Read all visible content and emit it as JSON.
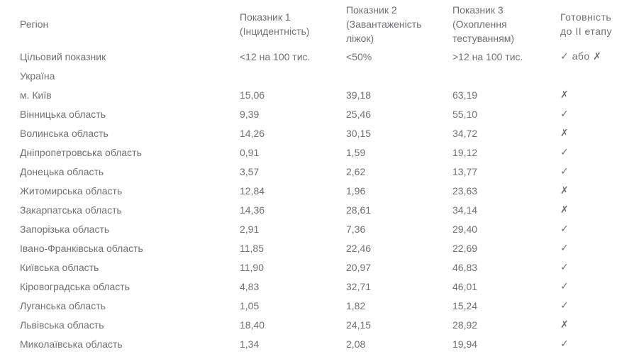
{
  "table": {
    "columns": [
      {
        "label": "Регіон"
      },
      {
        "label": "Показник 1\n(Інцидентність)"
      },
      {
        "label": "Показник 2\n(Завантаженість\nліжок)"
      },
      {
        "label": "Показник 3\n(Охоплення\nтестуванням)"
      },
      {
        "label": "Готовність\nдо II етапу"
      }
    ],
    "rows": [
      {
        "region": "Цільовий показник",
        "p1": "<12 на 100 тис.",
        "p2": "<50%",
        "p3": ">12 на 100 тис.",
        "ready": "✓ або ✗"
      },
      {
        "region": "Україна",
        "p1": "",
        "p2": "",
        "p3": "",
        "ready": ""
      },
      {
        "region": "м. Київ",
        "p1": "15,06",
        "p2": "39,18",
        "p3": "63,19",
        "ready": "✗"
      },
      {
        "region": "Вінницька область",
        "p1": "9,39",
        "p2": "25,46",
        "p3": "55,10",
        "ready": "✓"
      },
      {
        "region": "Волинська область",
        "p1": "14,26",
        "p2": "30,15",
        "p3": "34,72",
        "ready": "✗"
      },
      {
        "region": "Дніпропетровська область",
        "p1": "0,91",
        "p2": "1,59",
        "p3": "19,12",
        "ready": "✓"
      },
      {
        "region": "Донецька область",
        "p1": "3,57",
        "p2": "2,62",
        "p3": "13,77",
        "ready": "✓"
      },
      {
        "region": "Житомирська область",
        "p1": "12,84",
        "p2": "1,96",
        "p3": "23,63",
        "ready": "✗"
      },
      {
        "region": "Закарпатська область",
        "p1": "14,36",
        "p2": "28,61",
        "p3": "34,14",
        "ready": "✗"
      },
      {
        "region": "Запорізька область",
        "p1": "2,91",
        "p2": "7,36",
        "p3": "29,40",
        "ready": "✓"
      },
      {
        "region": "Івано-Франківська область",
        "p1": "11,85",
        "p2": "22,46",
        "p3": "22,69",
        "ready": "✓"
      },
      {
        "region": "Київська область",
        "p1": "11,90",
        "p2": "20,97",
        "p3": "46,83",
        "ready": "✓"
      },
      {
        "region": "Кіровоградська область",
        "p1": "4,83",
        "p2": "32,71",
        "p3": "46,01",
        "ready": "✓"
      },
      {
        "region": "Луганська область",
        "p1": "1,05",
        "p2": "1,82",
        "p3": "15,24",
        "ready": "✓"
      },
      {
        "region": "Львівська область",
        "p1": "18,40",
        "p2": "24,15",
        "p3": "28,92",
        "ready": "✗"
      },
      {
        "region": "Миколаївська область",
        "p1": "1,34",
        "p2": "2,08",
        "p3": "19,94",
        "ready": "✓"
      }
    ]
  },
  "icons": {
    "check": "✓",
    "cross": "✗"
  },
  "colors": {
    "text": "#6e7175",
    "background": "#ffffff"
  }
}
